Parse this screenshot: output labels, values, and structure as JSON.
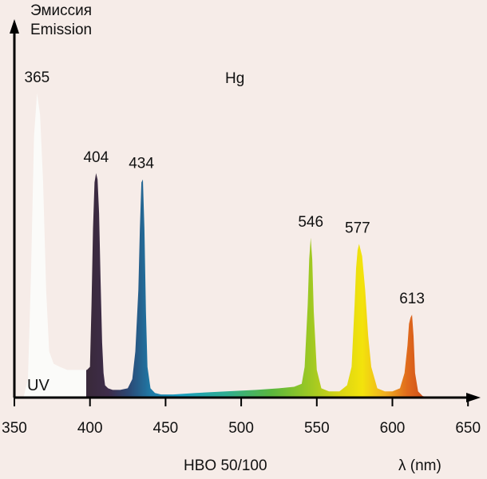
{
  "chart_data": {
    "type": "area",
    "ylabel_lines": [
      "Эмиссия",
      "Emission"
    ],
    "element_label": "Hg",
    "region_label": "UV",
    "source_label": "HBO 50/100",
    "xlabel": "λ (nm)",
    "xlim": [
      350,
      650
    ],
    "x_ticks": [
      350,
      400,
      450,
      500,
      550,
      600,
      650
    ],
    "grid": false,
    "peaks": [
      {
        "wavelength": 365,
        "label": "365",
        "rel_intensity": 0.99
      },
      {
        "wavelength": 404,
        "label": "404",
        "rel_intensity": 0.73
      },
      {
        "wavelength": 434,
        "label": "434",
        "rel_intensity": 0.71
      },
      {
        "wavelength": 546,
        "label": "546",
        "rel_intensity": 0.52
      },
      {
        "wavelength": 577,
        "label": "577",
        "rel_intensity": 0.5
      },
      {
        "wavelength": 613,
        "label": "613",
        "rel_intensity": 0.27
      }
    ],
    "spectrum": {
      "x": [
        352,
        356,
        359,
        361,
        363,
        365,
        367,
        369,
        371,
        373,
        376,
        380,
        385,
        390,
        395,
        398,
        400,
        401,
        402,
        403,
        404,
        405,
        406,
        407,
        408,
        409,
        410,
        412,
        415,
        420,
        425,
        428,
        430,
        432,
        433,
        434,
        435,
        436,
        437,
        438,
        440,
        443,
        447,
        455,
        470,
        490,
        510,
        525,
        535,
        540,
        542,
        544,
        545,
        546,
        547,
        548,
        550,
        553,
        558,
        565,
        570,
        573,
        575,
        576,
        577,
        578,
        580,
        582,
        584,
        586,
        590,
        595,
        600,
        605,
        608,
        610,
        611,
        612,
        613,
        614,
        615,
        617,
        620,
        625
      ],
      "y": [
        0.0,
        0.0,
        0.06,
        0.4,
        0.85,
        0.99,
        0.92,
        0.7,
        0.35,
        0.15,
        0.11,
        0.1,
        0.09,
        0.09,
        0.09,
        0.09,
        0.1,
        0.3,
        0.55,
        0.7,
        0.73,
        0.71,
        0.6,
        0.38,
        0.18,
        0.08,
        0.04,
        0.03,
        0.025,
        0.025,
        0.03,
        0.06,
        0.15,
        0.35,
        0.55,
        0.7,
        0.71,
        0.55,
        0.28,
        0.1,
        0.03,
        0.015,
        0.01,
        0.01,
        0.015,
        0.02,
        0.025,
        0.03,
        0.035,
        0.045,
        0.1,
        0.3,
        0.45,
        0.52,
        0.45,
        0.28,
        0.09,
        0.03,
        0.02,
        0.02,
        0.04,
        0.1,
        0.3,
        0.42,
        0.48,
        0.5,
        0.46,
        0.35,
        0.2,
        0.1,
        0.03,
        0.02,
        0.02,
        0.03,
        0.08,
        0.17,
        0.24,
        0.26,
        0.27,
        0.2,
        0.08,
        0.02,
        0.005,
        0.0
      ]
    },
    "colors": {
      "background": "#f6ece8",
      "uv_fill": "#fbfbf9",
      "axis": "#000000",
      "spectrum_stops": [
        {
          "wavelength": 400,
          "color": "#3a2a3c"
        },
        {
          "wavelength": 412,
          "color": "#3e2c4a"
        },
        {
          "wavelength": 425,
          "color": "#2c4672"
        },
        {
          "wavelength": 440,
          "color": "#1f79a6"
        },
        {
          "wavelength": 460,
          "color": "#1a9ec0"
        },
        {
          "wavelength": 490,
          "color": "#2fae92"
        },
        {
          "wavelength": 520,
          "color": "#5ab63e"
        },
        {
          "wavelength": 545,
          "color": "#9cc823"
        },
        {
          "wavelength": 565,
          "color": "#d8d414"
        },
        {
          "wavelength": 580,
          "color": "#f3e30c"
        },
        {
          "wavelength": 595,
          "color": "#f0b020"
        },
        {
          "wavelength": 610,
          "color": "#e06a1c"
        },
        {
          "wavelength": 625,
          "color": "#c8451a"
        }
      ]
    }
  }
}
